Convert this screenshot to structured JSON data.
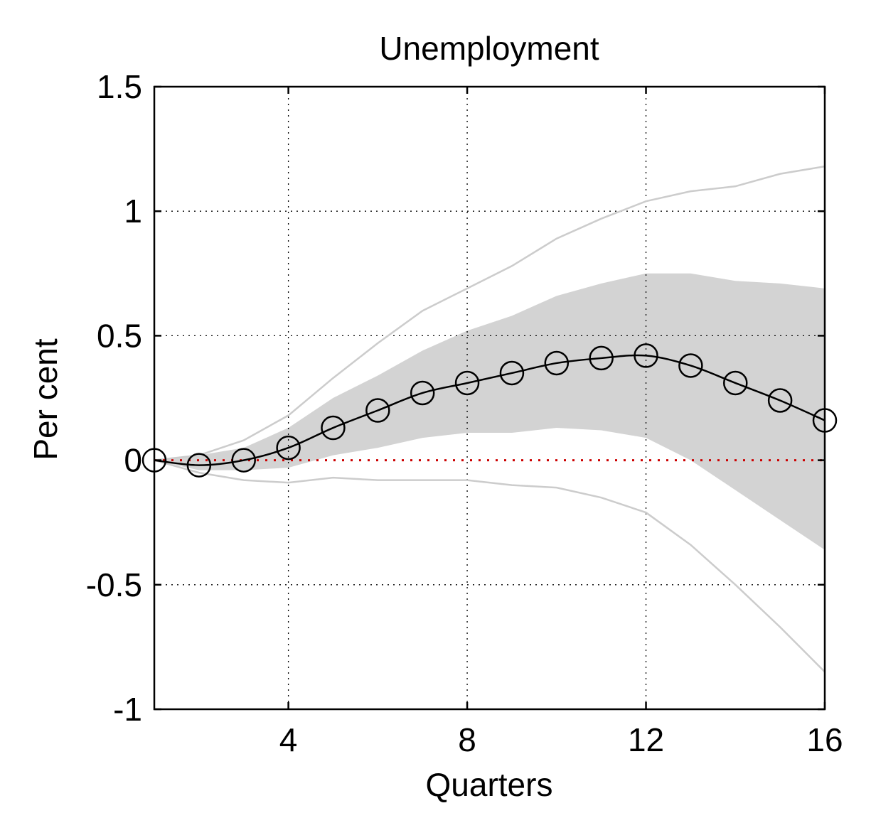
{
  "chart_data": {
    "type": "line",
    "title": "Unemployment",
    "xlabel": "Quarters",
    "ylabel": "Per cent",
    "xlim": [
      1,
      16
    ],
    "ylim": [
      -1,
      1.5
    ],
    "xticks": [
      4,
      8,
      12,
      16
    ],
    "yticks": [
      1.5,
      1,
      0.5,
      0,
      -0.5,
      -1
    ],
    "ytick_labels": [
      "1.5",
      "1",
      "0.5",
      "0",
      "-0.5",
      "-1"
    ],
    "grid": true,
    "zero_line_color": "#cc0000",
    "band_color": "#d3d3d3",
    "outer_band_color": "#cccccc",
    "line_color": "#000000",
    "x": [
      1,
      2,
      3,
      4,
      5,
      6,
      7,
      8,
      9,
      10,
      11,
      12,
      13,
      14,
      15,
      16
    ],
    "series": [
      {
        "values": [
          0,
          -0.02,
          0.0,
          0.05,
          0.13,
          0.2,
          0.27,
          0.31,
          0.35,
          0.39,
          0.41,
          0.42,
          0.38,
          0.31,
          0.24,
          0.16
        ]
      }
    ],
    "inner_band": {
      "upper": [
        0,
        0.02,
        0.05,
        0.13,
        0.25,
        0.34,
        0.44,
        0.52,
        0.58,
        0.66,
        0.71,
        0.75,
        0.75,
        0.72,
        0.71,
        0.69
      ],
      "lower": [
        0,
        -0.04,
        -0.04,
        -0.03,
        0.02,
        0.05,
        0.09,
        0.11,
        0.11,
        0.13,
        0.12,
        0.09,
        0.0,
        -0.12,
        -0.24,
        -0.36
      ]
    },
    "outer_band": {
      "upper": [
        0,
        0.02,
        0.08,
        0.18,
        0.33,
        0.47,
        0.6,
        0.69,
        0.78,
        0.89,
        0.97,
        1.04,
        1.08,
        1.1,
        1.15,
        1.18
      ],
      "lower": [
        0,
        -0.05,
        -0.08,
        -0.09,
        -0.07,
        -0.08,
        -0.08,
        -0.08,
        -0.1,
        -0.11,
        -0.15,
        -0.21,
        -0.34,
        -0.5,
        -0.67,
        -0.85
      ]
    }
  }
}
